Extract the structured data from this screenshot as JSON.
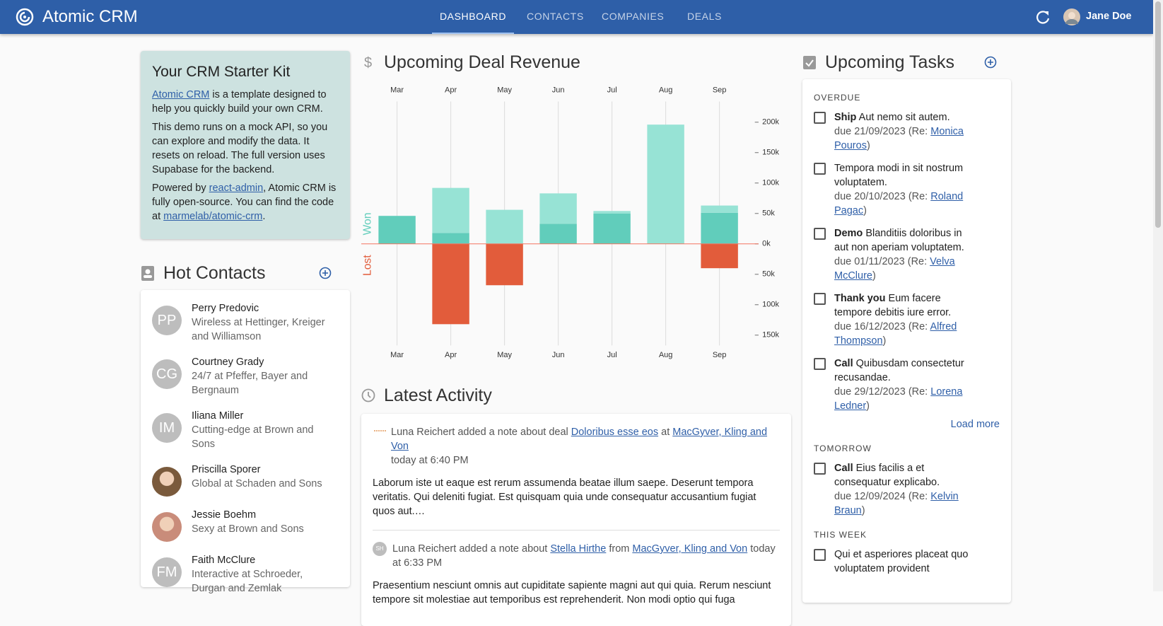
{
  "header": {
    "app_name": "Atomic CRM",
    "nav": [
      "DASHBOARD",
      "CONTACTS",
      "COMPANIES",
      "DEALS"
    ],
    "user": "Jane Doe"
  },
  "starter_kit": {
    "title": "Your CRM Starter Kit",
    "p1_link": "Atomic CRM",
    "p1": "is a template designed to help you quickly build your own CRM.",
    "p2": "This demo runs on a mock API, so you can explore and modify the data. It resets on reload. The full version uses Supabase for the backend.",
    "p3_a": "Powered by",
    "p3_link1": "react-admin",
    "p3_b": ", Atomic CRM is fully open-source. You can find the code at",
    "p3_link2": "marmelab/atomic-crm",
    "p3_c": "."
  },
  "hot_contacts": {
    "title": "Hot Contacts",
    "contacts": [
      {
        "initials": "PP",
        "name": "Perry Predovic",
        "detail": "Wireless at Hettinger, Kreiger and Williamson"
      },
      {
        "initials": "CG",
        "name": "Courtney Grady",
        "detail": "24/7 at Pfeffer, Bayer and Bergnaum"
      },
      {
        "initials": "IM",
        "name": "Iliana Miller",
        "detail": "Cutting-edge at Brown and Sons"
      },
      {
        "name": "Priscilla Sporer",
        "detail": "Global at Schaden and Sons"
      },
      {
        "name": "Jessie Boehm",
        "detail": "Sexy at Brown and Sons"
      },
      {
        "initials": "FM",
        "name": "Faith McClure",
        "detail": "Interactive at Schroeder, Durgan and Zemlak"
      }
    ]
  },
  "chart_data": {
    "type": "bar",
    "title": "Upcoming Deal Revenue",
    "categories": [
      "Mar",
      "Apr",
      "May",
      "Jun",
      "Jul",
      "Aug",
      "Sep"
    ],
    "series": [
      {
        "name": "Won",
        "color": "#61cdbb",
        "values": [
          46000,
          18000,
          null,
          33000,
          50000,
          null,
          51000
        ]
      },
      {
        "color": "#97e3d5",
        "values": [
          null,
          74000,
          56000,
          50000,
          4000,
          196000,
          12000
        ]
      },
      {
        "name": "Lost",
        "color": "#e25c3b",
        "values": [
          null,
          -132000,
          -68000,
          null,
          null,
          null,
          -40000
        ]
      }
    ],
    "ylim": [
      -167000,
      234000
    ],
    "yticks": [
      {
        "value": 200000,
        "label": "200k"
      },
      {
        "value": 150000,
        "label": "150k"
      },
      {
        "value": 100000,
        "label": "100k"
      },
      {
        "value": 50000,
        "label": "50k"
      },
      {
        "value": 0,
        "label": "0k"
      },
      {
        "value": -50000,
        "label": "50k"
      },
      {
        "value": -100000,
        "label": "100k"
      },
      {
        "value": -150000,
        "label": "150k"
      }
    ],
    "grid": true
  },
  "activity": {
    "title": "Latest Activity",
    "items": [
      {
        "author": "Luna Reichert",
        "action": "added a note about deal",
        "link1": "Doloribus esse eos",
        "joiner": "at",
        "link2": "MacGyver, Kling and Von",
        "time": "today at 6:40 PM",
        "body": "Laborum iste ut eaque est rerum assumenda beatae illum saepe. Deserunt tempora veritatis. Qui deleniti fugiat. Est quisquam quia unde consequatur accusantium fugiat quos aut.…"
      },
      {
        "initials": "SH",
        "author": "Luna Reichert",
        "action": "added a note about",
        "link1": "Stella Hirthe",
        "joiner": "from",
        "link2": "MacGyver, Kling and Von",
        "time": "today at 6:33 PM",
        "body": "Praesentium nesciunt omnis aut cupiditate sapiente magni aut qui quia. Rerum nesciunt tempore sit molestiae aut temporibus est reprehenderit. Non modi optio qui fuga"
      }
    ]
  },
  "tasks": {
    "title": "Upcoming Tasks",
    "close": ")",
    "load_more": "Load more",
    "groups": [
      {
        "label": "OVERDUE",
        "items": [
          {
            "type": "Ship",
            "text": "Aut nemo sit autem.",
            "due": "due 21/09/2023 (Re:",
            "contact": "Monica Pouros"
          },
          {
            "text": "Tempora modi in sit nostrum voluptatem.",
            "due": "due 20/10/2023 (Re:",
            "contact": "Roland Pagac"
          },
          {
            "type": "Demo",
            "text": "Blanditiis doloribus in aut non aperiam voluptatem.",
            "due": "due 01/11/2023 (Re:",
            "contact": "Velva McClure"
          },
          {
            "type": "Thank you",
            "text": "Eum facere tempore debitis iure error.",
            "due": "due 16/12/2023 (Re:",
            "contact": "Alfred Thompson"
          },
          {
            "type": "Call",
            "text": "Quibusdam consectetur recusandae.",
            "due": "due 29/12/2023 (Re:",
            "contact": "Lorena Ledner"
          }
        ]
      },
      {
        "label": "TOMORROW",
        "items": [
          {
            "type": "Call",
            "text": "Eius facilis a et consequatur explicabo.",
            "due": "due 12/09/2024 (Re:",
            "contact": "Kelvin Braun"
          }
        ]
      },
      {
        "label": "THIS WEEK",
        "items": [
          {
            "text": "Qui et asperiores placeat quo voluptatem provident"
          }
        ]
      }
    ]
  }
}
